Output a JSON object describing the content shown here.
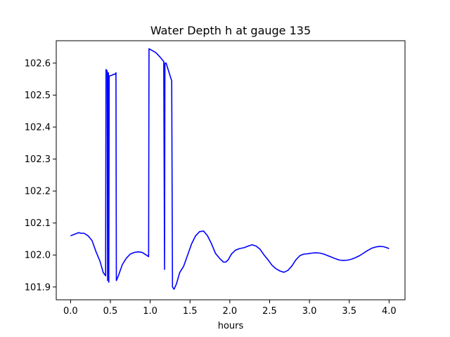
{
  "chart_data": {
    "type": "line",
    "title": "Water Depth h at gauge 135",
    "xlabel": "hours",
    "ylabel": "",
    "xlim": [
      -0.18,
      4.2
    ],
    "ylim": [
      101.86,
      102.67
    ],
    "xticks": [
      0.0,
      0.5,
      1.0,
      1.5,
      2.0,
      2.5,
      3.0,
      3.5,
      4.0
    ],
    "xtick_labels": [
      "0.0",
      "0.5",
      "1.0",
      "1.5",
      "2.0",
      "2.5",
      "3.0",
      "3.5",
      "4.0"
    ],
    "yticks": [
      101.9,
      102.0,
      102.1,
      102.2,
      102.3,
      102.4,
      102.5,
      102.6
    ],
    "ytick_labels": [
      "101.9",
      "102.0",
      "102.1",
      "102.2",
      "102.3",
      "102.4",
      "102.5",
      "102.6"
    ],
    "grid": false,
    "series": [
      {
        "color": "#0000ff",
        "points": [
          [
            0.0,
            102.06
          ],
          [
            0.05,
            102.065
          ],
          [
            0.1,
            102.07
          ],
          [
            0.13,
            102.068
          ],
          [
            0.17,
            102.068
          ],
          [
            0.22,
            102.06
          ],
          [
            0.27,
            102.045
          ],
          [
            0.32,
            102.01
          ],
          [
            0.37,
            101.98
          ],
          [
            0.41,
            101.945
          ],
          [
            0.44,
            101.935
          ],
          [
            0.445,
            102.58
          ],
          [
            0.46,
            102.575
          ],
          [
            0.465,
            101.92
          ],
          [
            0.475,
            102.57
          ],
          [
            0.48,
            101.915
          ],
          [
            0.485,
            102.56
          ],
          [
            0.52,
            102.562
          ],
          [
            0.54,
            102.565
          ],
          [
            0.56,
            102.565
          ],
          [
            0.57,
            102.57
          ],
          [
            0.575,
            101.92
          ],
          [
            0.6,
            101.935
          ],
          [
            0.65,
            101.97
          ],
          [
            0.7,
            101.99
          ],
          [
            0.75,
            102.003
          ],
          [
            0.8,
            102.008
          ],
          [
            0.85,
            102.01
          ],
          [
            0.9,
            102.008
          ],
          [
            0.95,
            102.0
          ],
          [
            0.98,
            101.995
          ],
          [
            0.985,
            102.645
          ],
          [
            1.02,
            102.64
          ],
          [
            1.07,
            102.633
          ],
          [
            1.12,
            102.62
          ],
          [
            1.17,
            102.605
          ],
          [
            1.18,
            101.955
          ],
          [
            1.185,
            102.6
          ],
          [
            1.2,
            102.6
          ],
          [
            1.25,
            102.56
          ],
          [
            1.27,
            102.545
          ],
          [
            1.28,
            101.9
          ],
          [
            1.3,
            101.893
          ],
          [
            1.33,
            101.91
          ],
          [
            1.37,
            101.945
          ],
          [
            1.42,
            101.965
          ],
          [
            1.47,
            102.0
          ],
          [
            1.52,
            102.035
          ],
          [
            1.57,
            102.06
          ],
          [
            1.62,
            102.073
          ],
          [
            1.67,
            102.075
          ],
          [
            1.72,
            102.06
          ],
          [
            1.77,
            102.035
          ],
          [
            1.82,
            102.005
          ],
          [
            1.87,
            101.99
          ],
          [
            1.92,
            101.978
          ],
          [
            1.95,
            101.978
          ],
          [
            1.98,
            101.985
          ],
          [
            2.02,
            102.003
          ],
          [
            2.07,
            102.015
          ],
          [
            2.12,
            102.02
          ],
          [
            2.18,
            102.023
          ],
          [
            2.23,
            102.028
          ],
          [
            2.28,
            102.032
          ],
          [
            2.33,
            102.028
          ],
          [
            2.38,
            102.018
          ],
          [
            2.43,
            102.0
          ],
          [
            2.48,
            101.985
          ],
          [
            2.53,
            101.968
          ],
          [
            2.58,
            101.957
          ],
          [
            2.63,
            101.95
          ],
          [
            2.68,
            101.946
          ],
          [
            2.73,
            101.952
          ],
          [
            2.78,
            101.966
          ],
          [
            2.83,
            101.985
          ],
          [
            2.88,
            101.998
          ],
          [
            2.93,
            102.003
          ],
          [
            2.98,
            102.004
          ],
          [
            3.03,
            102.006
          ],
          [
            3.08,
            102.007
          ],
          [
            3.13,
            102.006
          ],
          [
            3.18,
            102.003
          ],
          [
            3.23,
            101.998
          ],
          [
            3.28,
            101.993
          ],
          [
            3.33,
            101.988
          ],
          [
            3.38,
            101.984
          ],
          [
            3.43,
            101.983
          ],
          [
            3.48,
            101.984
          ],
          [
            3.53,
            101.987
          ],
          [
            3.58,
            101.992
          ],
          [
            3.63,
            101.998
          ],
          [
            3.68,
            102.006
          ],
          [
            3.73,
            102.014
          ],
          [
            3.78,
            102.021
          ],
          [
            3.83,
            102.025
          ],
          [
            3.88,
            102.027
          ],
          [
            3.93,
            102.026
          ],
          [
            3.97,
            102.023
          ],
          [
            4.0,
            102.02
          ]
        ]
      }
    ]
  }
}
